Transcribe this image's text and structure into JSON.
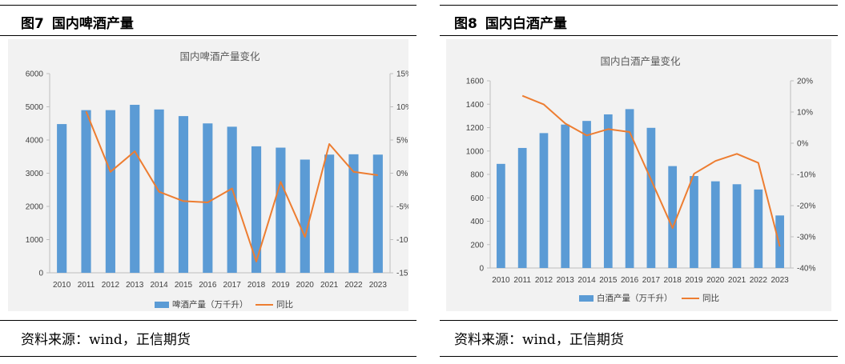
{
  "figures": [
    {
      "number": "图7",
      "heading": "国内啤酒产量",
      "source": "资料来源：wind，正信期货"
    },
    {
      "number": "图8",
      "heading": "国内白酒产量",
      "source": "资料来源：wind，正信期货"
    }
  ],
  "chart_data": [
    {
      "type": "bar",
      "title": "国内啤酒产量变化",
      "categories": [
        "2010",
        "2011",
        "2012",
        "2013",
        "2014",
        "2015",
        "2016",
        "2017",
        "2018",
        "2019",
        "2020",
        "2021",
        "2022",
        "2023"
      ],
      "series": [
        {
          "name": "啤酒产量（万千升）",
          "type": "bar",
          "axis": "left",
          "values": [
            4480,
            4900,
            4900,
            5060,
            4920,
            4720,
            4500,
            4400,
            3810,
            3770,
            3410,
            3560,
            3570,
            3560
          ]
        },
        {
          "name": "同比",
          "type": "line",
          "axis": "right",
          "values": [
            null,
            9.3,
            0.2,
            3.3,
            -2.8,
            -4.2,
            -4.4,
            -2.3,
            -13.3,
            -1.3,
            -9.6,
            4.4,
            0.2,
            -0.3
          ]
        }
      ],
      "y_left": {
        "min": 0,
        "max": 6000,
        "ticks": [
          "0",
          "1000",
          "2000",
          "3000",
          "4000",
          "5000",
          "6000"
        ]
      },
      "y_right": {
        "min": -15,
        "max": 15,
        "ticks": [
          "-15%",
          "-10%",
          "-5%",
          "0%",
          "5%",
          "10%",
          "15%"
        ]
      },
      "legend": [
        "啤酒产量（万千升）",
        "同比"
      ],
      "bar_color": "#5b9bd5",
      "line_color": "#ed7d31"
    },
    {
      "type": "bar",
      "title": "国内白酒产量变化",
      "categories": [
        "2010",
        "2011",
        "2012",
        "2013",
        "2014",
        "2015",
        "2016",
        "2017",
        "2018",
        "2019",
        "2020",
        "2021",
        "2022",
        "2023"
      ],
      "series": [
        {
          "name": "白酒产量（万千升）",
          "type": "bar",
          "axis": "left",
          "values": [
            890,
            1026,
            1153,
            1226,
            1257,
            1313,
            1358,
            1198,
            871,
            786,
            741,
            716,
            671,
            449
          ]
        },
        {
          "name": "同比",
          "type": "line",
          "axis": "right",
          "values": [
            null,
            15.2,
            12.4,
            6.3,
            2.5,
            4.5,
            3.6,
            -11.7,
            -27.2,
            -9.8,
            -5.7,
            -3.4,
            -6.3,
            -33.1
          ]
        }
      ],
      "y_left": {
        "min": 0,
        "max": 1600,
        "ticks": [
          "0",
          "200",
          "400",
          "600",
          "800",
          "1000",
          "1200",
          "1400",
          "1600"
        ]
      },
      "y_right": {
        "min": -40,
        "max": 20,
        "ticks": [
          "-40%",
          "-30%",
          "-20%",
          "-10%",
          "0%",
          "10%",
          "20%"
        ]
      },
      "legend": [
        "白酒产量（万千升）",
        "同比"
      ],
      "bar_color": "#5b9bd5",
      "line_color": "#ed7d31"
    }
  ]
}
